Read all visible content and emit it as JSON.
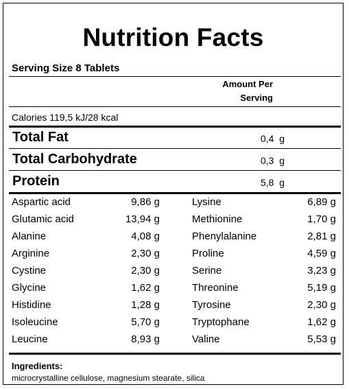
{
  "label": {
    "title": "Nutrition Facts",
    "serving_size": "Serving Size 8 Tablets",
    "amount_per_line1": "Amount Per",
    "amount_per_line2": "Serving",
    "calories": "Calories 119,5 kJ/28 kcal",
    "macros": [
      {
        "name": "Total Fat",
        "value": "0,4  g"
      },
      {
        "name": "Total Carbohydrate",
        "value": "0,3  g"
      },
      {
        "name": "Protein",
        "value": "5,8  g"
      }
    ],
    "amino_acids_left": [
      {
        "name": "Aspartic acid",
        "value": "9,86  g"
      },
      {
        "name": "Glutamic acid",
        "value": "13,94  g"
      },
      {
        "name": "Alanine",
        "value": "4,08  g"
      },
      {
        "name": "Arginine",
        "value": "2,30  g"
      },
      {
        "name": "Cystine",
        "value": "2,30  g"
      },
      {
        "name": "Glycine",
        "value": "1,62  g"
      },
      {
        "name": "Histidine",
        "value": "1,28  g"
      },
      {
        "name": "Isoleucine",
        "value": "5,70  g"
      },
      {
        "name": "Leucine",
        "value": "8,93  g"
      }
    ],
    "amino_acids_right": [
      {
        "name": "Lysine",
        "value": "6,89  g"
      },
      {
        "name": "Methionine",
        "value": "1,70  g"
      },
      {
        "name": "Phenylalanine",
        "value": "2,81  g"
      },
      {
        "name": "Proline",
        "value": "4,59  g"
      },
      {
        "name": "Serine",
        "value": "3,23  g"
      },
      {
        "name": "Threonine",
        "value": "5,19  g"
      },
      {
        "name": "Tyrosine",
        "value": "2,30  g"
      },
      {
        "name": "Tryptophane",
        "value": "1,62  g"
      },
      {
        "name": "Valine",
        "value": "5,53  g"
      }
    ],
    "ingredients_title": "Ingredients:",
    "ingredients": "microcrystalline cellulose, magnesium stearate, silica"
  }
}
